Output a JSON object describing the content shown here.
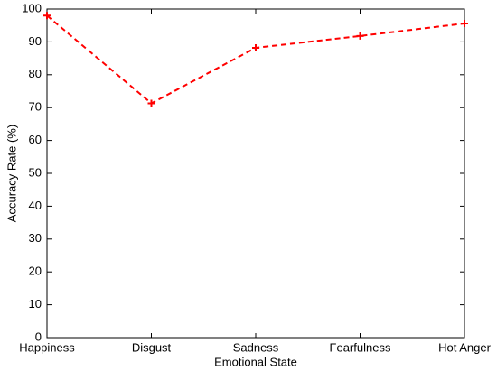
{
  "chart_data": {
    "type": "line",
    "xlabel": "Emotional State",
    "ylabel": "Accuracy Rate (%)",
    "categories": [
      "Happiness",
      "Disgust",
      "Sadness",
      "Fearfulness",
      "Hot Anger"
    ],
    "values": [
      98,
      71.3,
      88.2,
      91.8,
      95.6
    ],
    "color": "#ff0000",
    "line_style": "dashed",
    "marker": "+",
    "ylim": [
      0,
      100
    ],
    "yticks": [
      0,
      10,
      20,
      30,
      40,
      50,
      60,
      70,
      80,
      90,
      100
    ],
    "grid": false
  }
}
